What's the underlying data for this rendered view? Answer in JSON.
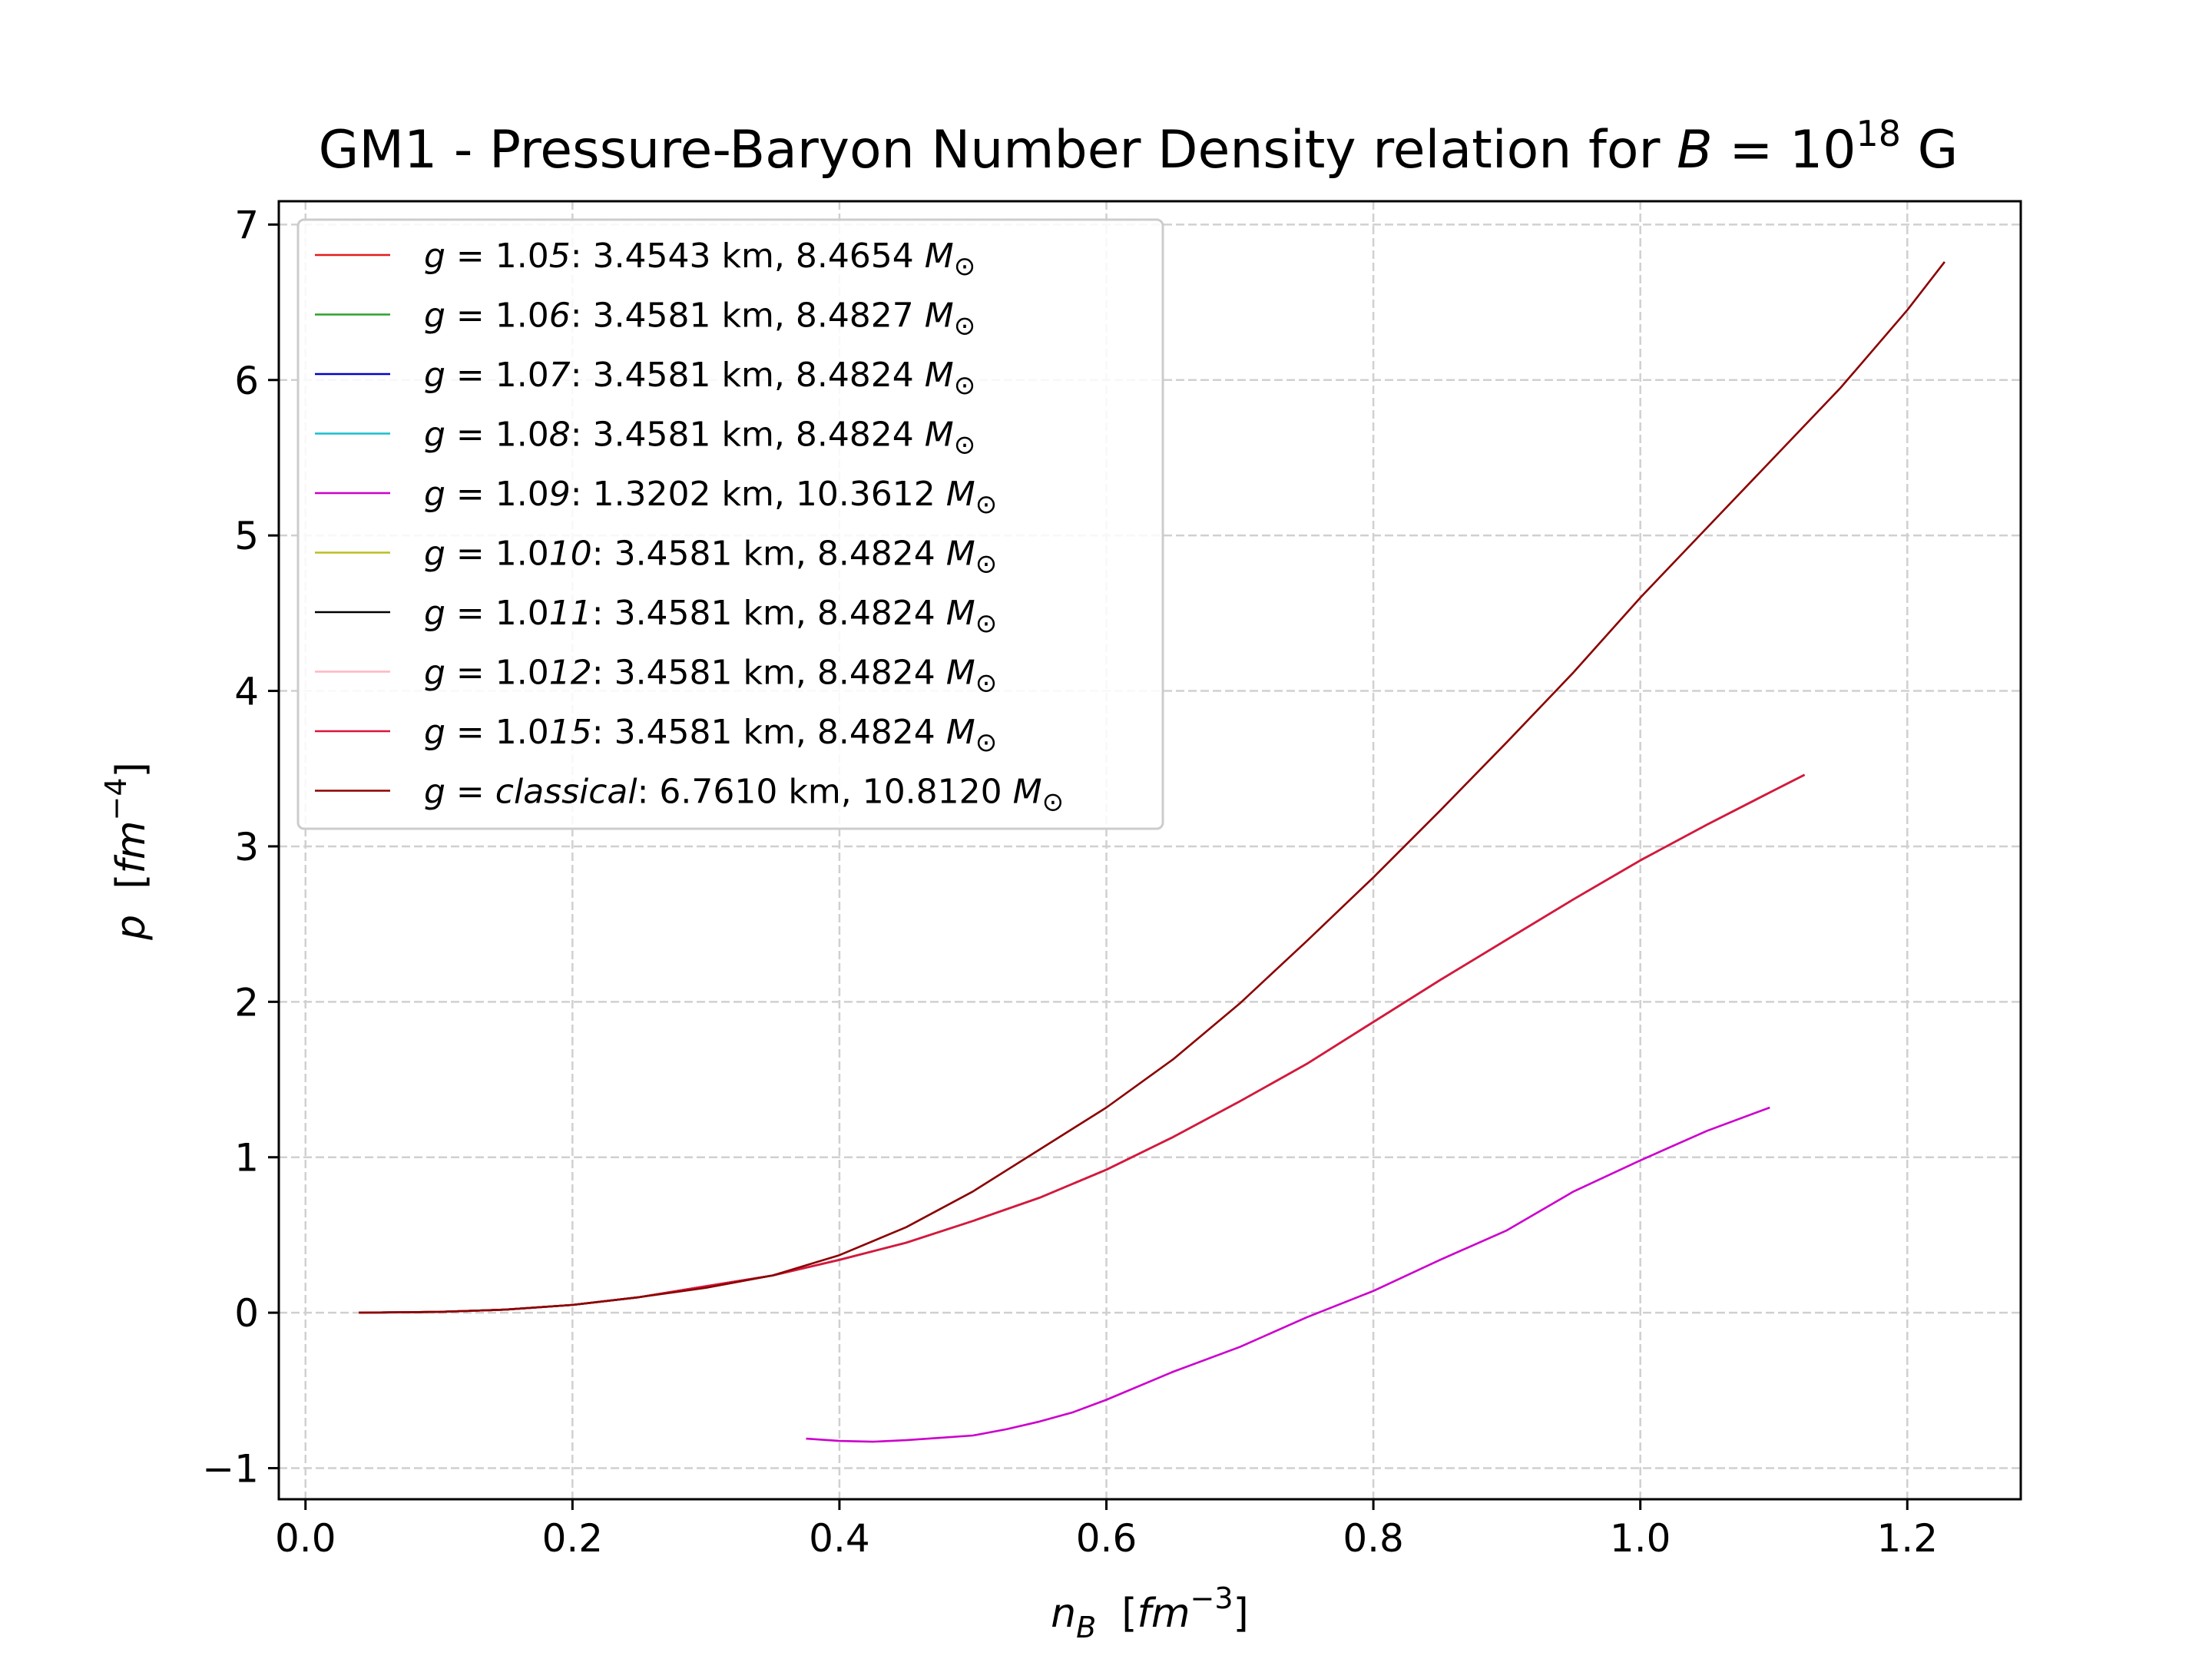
{
  "chart_data": {
    "type": "line",
    "title": {
      "prefix": "GM1 - Pressure-Baryon Number Density relation for ",
      "var": "B",
      "eq": " = 10",
      "sup": "18",
      "suffix": " G"
    },
    "xlabel": {
      "var": "n",
      "sub": "B",
      "open": "  [",
      "unit": "fm",
      "sup": "−3",
      "close": "]"
    },
    "ylabel": {
      "var": "p",
      "open": "  [",
      "unit": "fm",
      "sup": "−4",
      "close": "]"
    },
    "xlim": [
      -0.02,
      1.285
    ],
    "ylim": [
      -1.2,
      7.15
    ],
    "xticks": [
      0.0,
      0.2,
      0.4,
      0.6,
      0.8,
      1.0,
      1.2
    ],
    "xtick_labels": [
      "0.0",
      "0.2",
      "0.4",
      "0.6",
      "0.8",
      "1.0",
      "1.2"
    ],
    "yticks": [
      -1,
      0,
      1,
      2,
      3,
      4,
      5,
      6,
      7
    ],
    "ytick_labels": [
      "−1",
      "0",
      "1",
      "2",
      "3",
      "4",
      "5",
      "6",
      "7"
    ],
    "grid": true,
    "legend_position": "upper-left",
    "series": [
      {
        "name": "g = 1.0d5: 3.4543 km, 8.4654 M☉",
        "label_parts": {
          "g": "1.0",
          "d": "5",
          "rest": ": 3.4543 km, 8.4654 "
        },
        "color": "#e41a1c",
        "x": [
          0.04,
          0.1,
          0.15,
          0.2,
          0.25,
          0.3,
          0.35,
          0.4,
          0.45,
          0.5,
          0.55,
          0.6,
          0.65,
          0.7,
          0.75,
          0.8,
          0.85,
          0.9,
          0.95,
          1.0,
          1.05,
          1.1,
          1.123
        ],
        "y": [
          0.0,
          0.005,
          0.02,
          0.05,
          0.1,
          0.17,
          0.24,
          0.34,
          0.45,
          0.59,
          0.74,
          0.92,
          1.13,
          1.36,
          1.6,
          1.87,
          2.14,
          2.4,
          2.66,
          2.91,
          3.14,
          3.36,
          3.46
        ]
      },
      {
        "name": "g = 1.0d6: 3.4581 km, 8.4827 M☉",
        "label_parts": {
          "g": "1.0",
          "d": "6",
          "rest": ": 3.4581 km, 8.4827 "
        },
        "color": "#2ca02c",
        "x": [
          0.04,
          0.1,
          0.15,
          0.2,
          0.25,
          0.3,
          0.35,
          0.4,
          0.45,
          0.5,
          0.55,
          0.6,
          0.65,
          0.7,
          0.75,
          0.8,
          0.85,
          0.9,
          0.95,
          1.0,
          1.05,
          1.1,
          1.123
        ],
        "y": [
          0.0,
          0.005,
          0.02,
          0.05,
          0.1,
          0.17,
          0.24,
          0.34,
          0.45,
          0.59,
          0.74,
          0.92,
          1.13,
          1.36,
          1.6,
          1.87,
          2.14,
          2.4,
          2.66,
          2.91,
          3.14,
          3.36,
          3.46
        ]
      },
      {
        "name": "g = 1.0d7: 3.4581 km, 8.4824 M☉",
        "label_parts": {
          "g": "1.0",
          "d": "7",
          "rest": ": 3.4581 km, 8.4824 "
        },
        "color": "#0000cc",
        "x": [
          0.04,
          0.1,
          0.15,
          0.2,
          0.25,
          0.3,
          0.35,
          0.4,
          0.45,
          0.5,
          0.55,
          0.6,
          0.65,
          0.7,
          0.75,
          0.8,
          0.85,
          0.9,
          0.95,
          1.0,
          1.05,
          1.1,
          1.123
        ],
        "y": [
          0.0,
          0.005,
          0.02,
          0.05,
          0.1,
          0.17,
          0.24,
          0.34,
          0.45,
          0.59,
          0.74,
          0.92,
          1.13,
          1.36,
          1.6,
          1.87,
          2.14,
          2.4,
          2.66,
          2.91,
          3.14,
          3.36,
          3.46
        ]
      },
      {
        "name": "g = 1.0d8: 3.4581 km, 8.4824 M☉",
        "label_parts": {
          "g": "1.0",
          "d": "8",
          "rest": ": 3.4581 km, 8.4824 "
        },
        "color": "#17becf",
        "x": [
          0.04,
          0.1,
          0.15,
          0.2,
          0.25,
          0.3,
          0.35,
          0.4,
          0.45,
          0.5,
          0.55,
          0.6,
          0.65,
          0.7,
          0.75,
          0.8,
          0.85,
          0.9,
          0.95,
          1.0,
          1.05,
          1.1,
          1.123
        ],
        "y": [
          0.0,
          0.005,
          0.02,
          0.05,
          0.1,
          0.17,
          0.24,
          0.34,
          0.45,
          0.59,
          0.74,
          0.92,
          1.13,
          1.36,
          1.6,
          1.87,
          2.14,
          2.4,
          2.66,
          2.91,
          3.14,
          3.36,
          3.46
        ]
      },
      {
        "name": "g = 1.0d9: 1.3202 km, 10.3612 M☉",
        "label_parts": {
          "g": "1.0",
          "d": "9",
          "rest": ": 1.3202 km, 10.3612 "
        },
        "color": "#cc00cc",
        "x": [
          0.375,
          0.4,
          0.425,
          0.45,
          0.475,
          0.5,
          0.525,
          0.55,
          0.575,
          0.6,
          0.65,
          0.7,
          0.75,
          0.8,
          0.85,
          0.9,
          0.95,
          1.0,
          1.05,
          1.097
        ],
        "y": [
          -0.81,
          -0.825,
          -0.83,
          -0.82,
          -0.805,
          -0.79,
          -0.75,
          -0.7,
          -0.64,
          -0.56,
          -0.38,
          -0.22,
          -0.03,
          0.14,
          0.34,
          0.53,
          0.78,
          0.98,
          1.17,
          1.32
        ]
      },
      {
        "name": "g = 1.0d10: 3.4581 km, 8.4824 M☉",
        "label_parts": {
          "g": "1.0",
          "d": "10",
          "rest": ": 3.4581 km, 8.4824 "
        },
        "color": "#bcbd22",
        "x": [
          0.04,
          0.1,
          0.15,
          0.2,
          0.25,
          0.3,
          0.35,
          0.4,
          0.45,
          0.5,
          0.55,
          0.6,
          0.65,
          0.7,
          0.75,
          0.8,
          0.85,
          0.9,
          0.95,
          1.0,
          1.05,
          1.1,
          1.123
        ],
        "y": [
          0.0,
          0.005,
          0.02,
          0.05,
          0.1,
          0.17,
          0.24,
          0.34,
          0.45,
          0.59,
          0.74,
          0.92,
          1.13,
          1.36,
          1.6,
          1.87,
          2.14,
          2.4,
          2.66,
          2.91,
          3.14,
          3.36,
          3.46
        ]
      },
      {
        "name": "g = 1.0d11: 3.4581 km, 8.4824 M☉",
        "label_parts": {
          "g": "1.0",
          "d": "11",
          "rest": ": 3.4581 km, 8.4824 "
        },
        "color": "#000000",
        "x": [
          0.04,
          0.1,
          0.15,
          0.2,
          0.25,
          0.3,
          0.35,
          0.4,
          0.45,
          0.5,
          0.55,
          0.6,
          0.65,
          0.7,
          0.75,
          0.8,
          0.85,
          0.9,
          0.95,
          1.0,
          1.05,
          1.1,
          1.123
        ],
        "y": [
          0.0,
          0.005,
          0.02,
          0.05,
          0.1,
          0.17,
          0.24,
          0.34,
          0.45,
          0.59,
          0.74,
          0.92,
          1.13,
          1.36,
          1.6,
          1.87,
          2.14,
          2.4,
          2.66,
          2.91,
          3.14,
          3.36,
          3.46
        ]
      },
      {
        "name": "g = 1.0d12: 3.4581 km, 8.4824 M☉",
        "label_parts": {
          "g": "1.0",
          "d": "12",
          "rest": ": 3.4581 km, 8.4824 "
        },
        "color": "#ffb6c1",
        "x": [
          0.04,
          0.1,
          0.15,
          0.2,
          0.25,
          0.3,
          0.35,
          0.4,
          0.45,
          0.5,
          0.55,
          0.6,
          0.65,
          0.7,
          0.75,
          0.8,
          0.85,
          0.9,
          0.95,
          1.0,
          1.05,
          1.1,
          1.123
        ],
        "y": [
          0.0,
          0.005,
          0.02,
          0.05,
          0.1,
          0.17,
          0.24,
          0.34,
          0.45,
          0.59,
          0.74,
          0.92,
          1.13,
          1.36,
          1.6,
          1.87,
          2.14,
          2.4,
          2.66,
          2.91,
          3.14,
          3.36,
          3.46
        ]
      },
      {
        "name": "g = 1.0d15: 3.4581 km, 8.4824 M☉",
        "label_parts": {
          "g": "1.0",
          "d": "15",
          "rest": ": 3.4581 km, 8.4824 "
        },
        "color": "#dc143c",
        "x": [
          0.04,
          0.1,
          0.15,
          0.2,
          0.25,
          0.3,
          0.35,
          0.4,
          0.45,
          0.5,
          0.55,
          0.6,
          0.65,
          0.7,
          0.75,
          0.8,
          0.85,
          0.9,
          0.95,
          1.0,
          1.05,
          1.1,
          1.123
        ],
        "y": [
          0.0,
          0.005,
          0.02,
          0.05,
          0.1,
          0.17,
          0.24,
          0.34,
          0.45,
          0.59,
          0.74,
          0.92,
          1.13,
          1.36,
          1.6,
          1.87,
          2.14,
          2.4,
          2.66,
          2.91,
          3.14,
          3.36,
          3.46
        ]
      },
      {
        "name": "g = classical: 6.7610 km, 10.8120 M☉",
        "label_parts": {
          "g": "",
          "d": "classical",
          "rest": ": 6.7610 km, 10.8120 "
        },
        "color": "#8b0000",
        "x": [
          0.04,
          0.1,
          0.15,
          0.2,
          0.25,
          0.3,
          0.35,
          0.4,
          0.45,
          0.5,
          0.55,
          0.6,
          0.65,
          0.7,
          0.75,
          0.8,
          0.85,
          0.9,
          0.95,
          1.0,
          1.05,
          1.1,
          1.15,
          1.2,
          1.228
        ],
        "y": [
          0.0,
          0.005,
          0.02,
          0.05,
          0.1,
          0.16,
          0.24,
          0.37,
          0.55,
          0.78,
          1.05,
          1.32,
          1.63,
          1.99,
          2.39,
          2.8,
          3.23,
          3.67,
          4.12,
          4.6,
          5.05,
          5.5,
          5.95,
          6.45,
          6.76
        ]
      }
    ]
  }
}
